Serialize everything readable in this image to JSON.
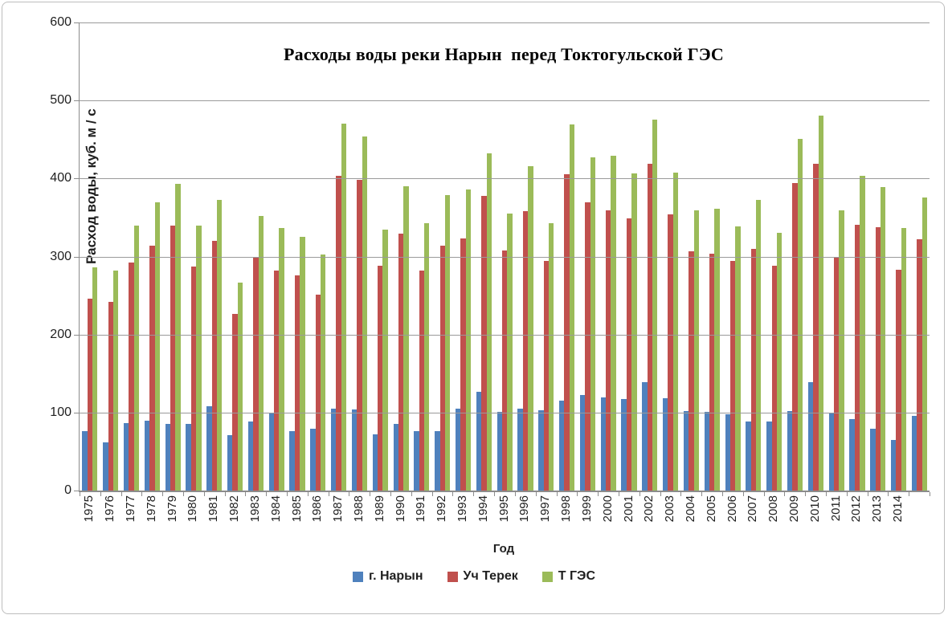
{
  "chart_title": "Расходы воды реки Нарын  перед Токтогульской ГЭС",
  "y_axis_title": "Расход воды, куб. м / с",
  "x_axis_title": "Год",
  "colors": {
    "series_blue": "#4F81BD",
    "series_red": "#C0504D",
    "series_green": "#9BBB59",
    "gridline": "#9a9a9a",
    "axis": "#8c8c8c"
  },
  "chart_data": {
    "type": "bar",
    "title": "Расходы воды реки Нарын  перед Токтогульской ГЭС",
    "xlabel": "Год",
    "ylabel": "Расход воды, куб. м / с",
    "ylim": [
      0,
      600
    ],
    "y_ticks": [
      0,
      100,
      200,
      300,
      400,
      500,
      600
    ],
    "grid": true,
    "legend_position": "bottom",
    "categories": [
      "1975",
      "1976",
      "1977",
      "1978",
      "1979",
      "1980",
      "1981",
      "1982",
      "1983",
      "1984",
      "1985",
      "1986",
      "1987",
      "1988",
      "1989",
      "1990",
      "1991",
      "1992",
      "1993",
      "1994",
      "1995",
      "1996",
      "1997",
      "1998",
      "1999",
      "2000",
      "2001",
      "2002",
      "2003",
      "2004",
      "2005",
      "2006",
      "2007",
      "2008",
      "2009",
      "2010",
      "2011",
      "2012",
      "2013",
      "2014",
      ""
    ],
    "series": [
      {
        "name": "г. Нарын",
        "color": "#4F81BD",
        "values": [
          76,
          62,
          86,
          90,
          85,
          85,
          108,
          71,
          89,
          100,
          76,
          79,
          105,
          104,
          72,
          85,
          76,
          76,
          105,
          127,
          101,
          105,
          103,
          115,
          123,
          119,
          117,
          139,
          118,
          102,
          101,
          98,
          89,
          89,
          102,
          139,
          99,
          92,
          79,
          65,
          96
        ]
      },
      {
        "name": "Уч Терек",
        "color": "#C0504D",
        "values": [
          246,
          242,
          292,
          314,
          340,
          287,
          320,
          226,
          300,
          282,
          276,
          251,
          403,
          398,
          288,
          329,
          282,
          314,
          323,
          378,
          308,
          358,
          294,
          406,
          369,
          359,
          349,
          419,
          354,
          307,
          304,
          294,
          310,
          288,
          394,
          419,
          299,
          341,
          338,
          283,
          322
        ]
      },
      {
        "name": "Т ГЭС",
        "color": "#9BBB59",
        "values": [
          286,
          282,
          340,
          369,
          393,
          340,
          373,
          267,
          352,
          337,
          325,
          303,
          470,
          454,
          335,
          390,
          343,
          379,
          386,
          432,
          355,
          416,
          343,
          469,
          427,
          429,
          407,
          475,
          408,
          359,
          361,
          339,
          373,
          330,
          451,
          481,
          359,
          403,
          389,
          337,
          376
        ]
      }
    ]
  }
}
